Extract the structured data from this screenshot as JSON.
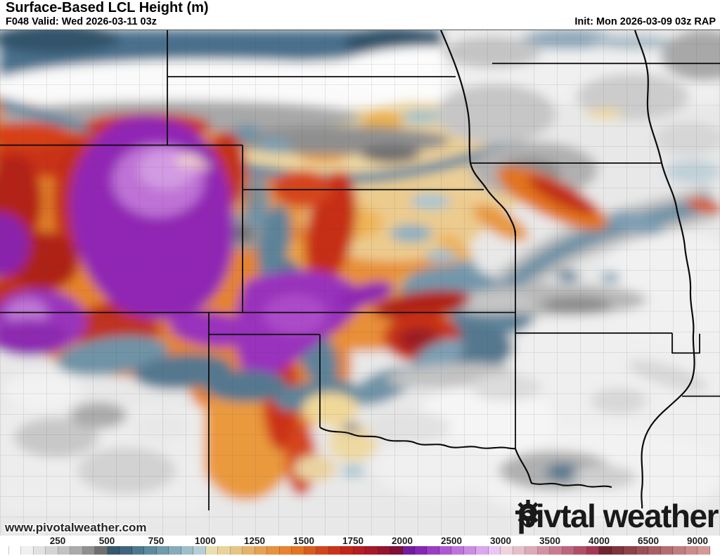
{
  "header": {
    "title": "Surface-Based LCL Height (m)",
    "subtitle": "F048 Valid: Wed 2026-03-11 03z",
    "init": "Init: Mon 2026-03-09 03z RAP"
  },
  "branding": {
    "watermark": "www.pivotalweather.com",
    "logo_part1": "piv",
    "logo_part2": "tal weather"
  },
  "colorbar": {
    "tick_labels": [
      "250",
      "500",
      "750",
      "1000",
      "1250",
      "1500",
      "1750",
      "2000",
      "2500",
      "3000",
      "3500",
      "4000",
      "6500",
      "9000"
    ],
    "segment_colors": [
      "#ffffff",
      "#f0f0f0",
      "#e2e2e2",
      "#d4d4d4",
      "#c2c2c2",
      "#ababab",
      "#8f8f8f",
      "#6f6f6f",
      "#35586f",
      "#41647e",
      "#4f7890",
      "#5f89a0",
      "#7299ac",
      "#88abba",
      "#9fbec8",
      "#b7ced6",
      "#eadfae",
      "#e8d49b",
      "#e6c485",
      "#e5b26c",
      "#e5a254",
      "#e69242",
      "#e78332",
      "#e37423",
      "#d85c1e",
      "#d0451c",
      "#c9331b",
      "#c0261c",
      "#b31e22",
      "#a41a29",
      "#941430",
      "#7f0f36",
      "#6f1d9e",
      "#8527b2",
      "#9a3cc4",
      "#ad58d2",
      "#bd73dc",
      "#cb8ce4",
      "#daa8ec",
      "#e9c6f4",
      "#eed3da",
      "#e6bfc9",
      "#dcaab8",
      "#d193a4",
      "#c77d90",
      "#bd657c",
      "#b14e68",
      "#a33754",
      "#6f2631",
      "#7d343d",
      "#8b4249",
      "#995055",
      "#a75f63",
      "#b36e70",
      "#bf7d7e",
      "#ca8c8b",
      "#d29997"
    ]
  }
}
